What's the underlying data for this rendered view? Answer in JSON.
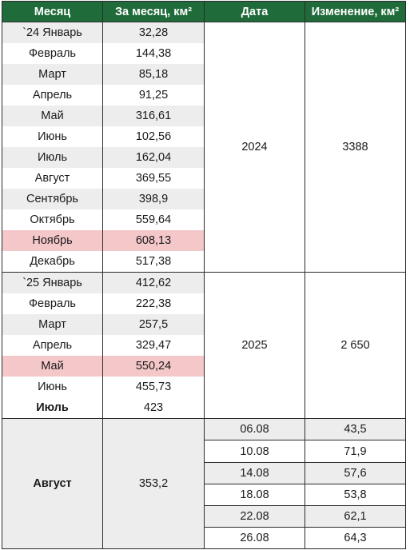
{
  "headers": {
    "month": "Месяц",
    "per_month": "За месяц, км²",
    "date": "Дата",
    "change": "Изменение, км²"
  },
  "year2024": {
    "date": "2024",
    "change": "3388",
    "rows": [
      {
        "month": "`24 Январь",
        "value": "32,28"
      },
      {
        "month": "Февраль",
        "value": "144,38"
      },
      {
        "month": "Март",
        "value": "85,18"
      },
      {
        "month": "Апрель",
        "value": "91,25"
      },
      {
        "month": "Май",
        "value": "316,61"
      },
      {
        "month": "Июнь",
        "value": "102,56"
      },
      {
        "month": "Июль",
        "value": "162,04"
      },
      {
        "month": "Август",
        "value": "369,55"
      },
      {
        "month": "Сентябрь",
        "value": "398,9"
      },
      {
        "month": "Октябрь",
        "value": "559,64"
      },
      {
        "month": "Ноябрь",
        "value": "608,13"
      },
      {
        "month": "Декабрь",
        "value": "517,38"
      }
    ]
  },
  "year2025": {
    "date": "2025",
    "change": "2 650",
    "rows": [
      {
        "month": "`25 Январь",
        "value": "412,62"
      },
      {
        "month": "Февраль",
        "value": "222,38"
      },
      {
        "month": "Март",
        "value": "257,5"
      },
      {
        "month": "Апрель",
        "value": "329,47"
      },
      {
        "month": "Май",
        "value": "550,24"
      },
      {
        "month": "Июнь",
        "value": "455,73"
      },
      {
        "month": "Июль",
        "value": "423"
      }
    ]
  },
  "august": {
    "month": "Август",
    "value": "353,2",
    "rows": [
      {
        "date": "06.08",
        "change": "43,5"
      },
      {
        "date": "10.08",
        "change": "71,9"
      },
      {
        "date": "14.08",
        "change": "57,6"
      },
      {
        "date": "18.08",
        "change": "53,8"
      },
      {
        "date": "22.08",
        "change": "62,1"
      },
      {
        "date": "26.08",
        "change": "64,3"
      }
    ]
  },
  "colors": {
    "header_bg": "#1f6b3a",
    "stripe": "#ededed",
    "highlight": "#f4c7c9"
  }
}
